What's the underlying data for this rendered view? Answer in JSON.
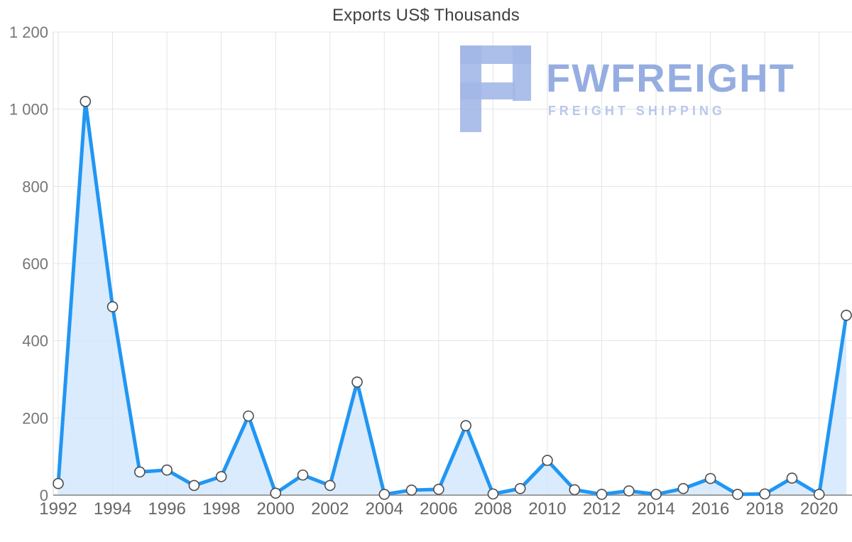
{
  "title": "Exports US$ Thousands",
  "watermark": {
    "brand": "FWFREIGHT",
    "tagline": "FREIGHT SHIPPING",
    "brand_color": "#91a9e0"
  },
  "chart_data": {
    "type": "area",
    "title": "Exports US$ Thousands",
    "xlabel": "",
    "ylabel": "",
    "x": [
      1992,
      1993,
      1994,
      1995,
      1996,
      1997,
      1998,
      1999,
      2000,
      2001,
      2002,
      2003,
      2004,
      2005,
      2006,
      2007,
      2008,
      2009,
      2010,
      2011,
      2012,
      2013,
      2014,
      2015,
      2016,
      2017,
      2018,
      2019,
      2020,
      2021
    ],
    "values": [
      30,
      1020,
      488,
      60,
      65,
      25,
      48,
      205,
      5,
      52,
      25,
      293,
      2,
      13,
      15,
      180,
      3,
      17,
      90,
      14,
      2,
      11,
      2,
      17,
      43,
      2,
      3,
      44,
      2,
      466
    ],
    "ylim": [
      0,
      1200
    ],
    "y_ticks": [
      0,
      200,
      400,
      600,
      800,
      1000,
      1200
    ],
    "y_tick_labels": [
      "0",
      "200",
      "400",
      "600",
      "800",
      "1 000",
      "1 200"
    ],
    "x_tick_years": [
      1992,
      1994,
      1996,
      1998,
      2000,
      2002,
      2004,
      2006,
      2008,
      2010,
      2012,
      2014,
      2016,
      2018,
      2020
    ],
    "grid": true,
    "legend": false,
    "colors": {
      "line": "#2196f3",
      "fill": "#cfe6fb",
      "marker_fill": "#ffffff",
      "marker_stroke": "#4d4d4d",
      "grid": "#e4e4e4",
      "axis": "#9e9e9e",
      "axis_left": "#d9d9d9"
    }
  }
}
